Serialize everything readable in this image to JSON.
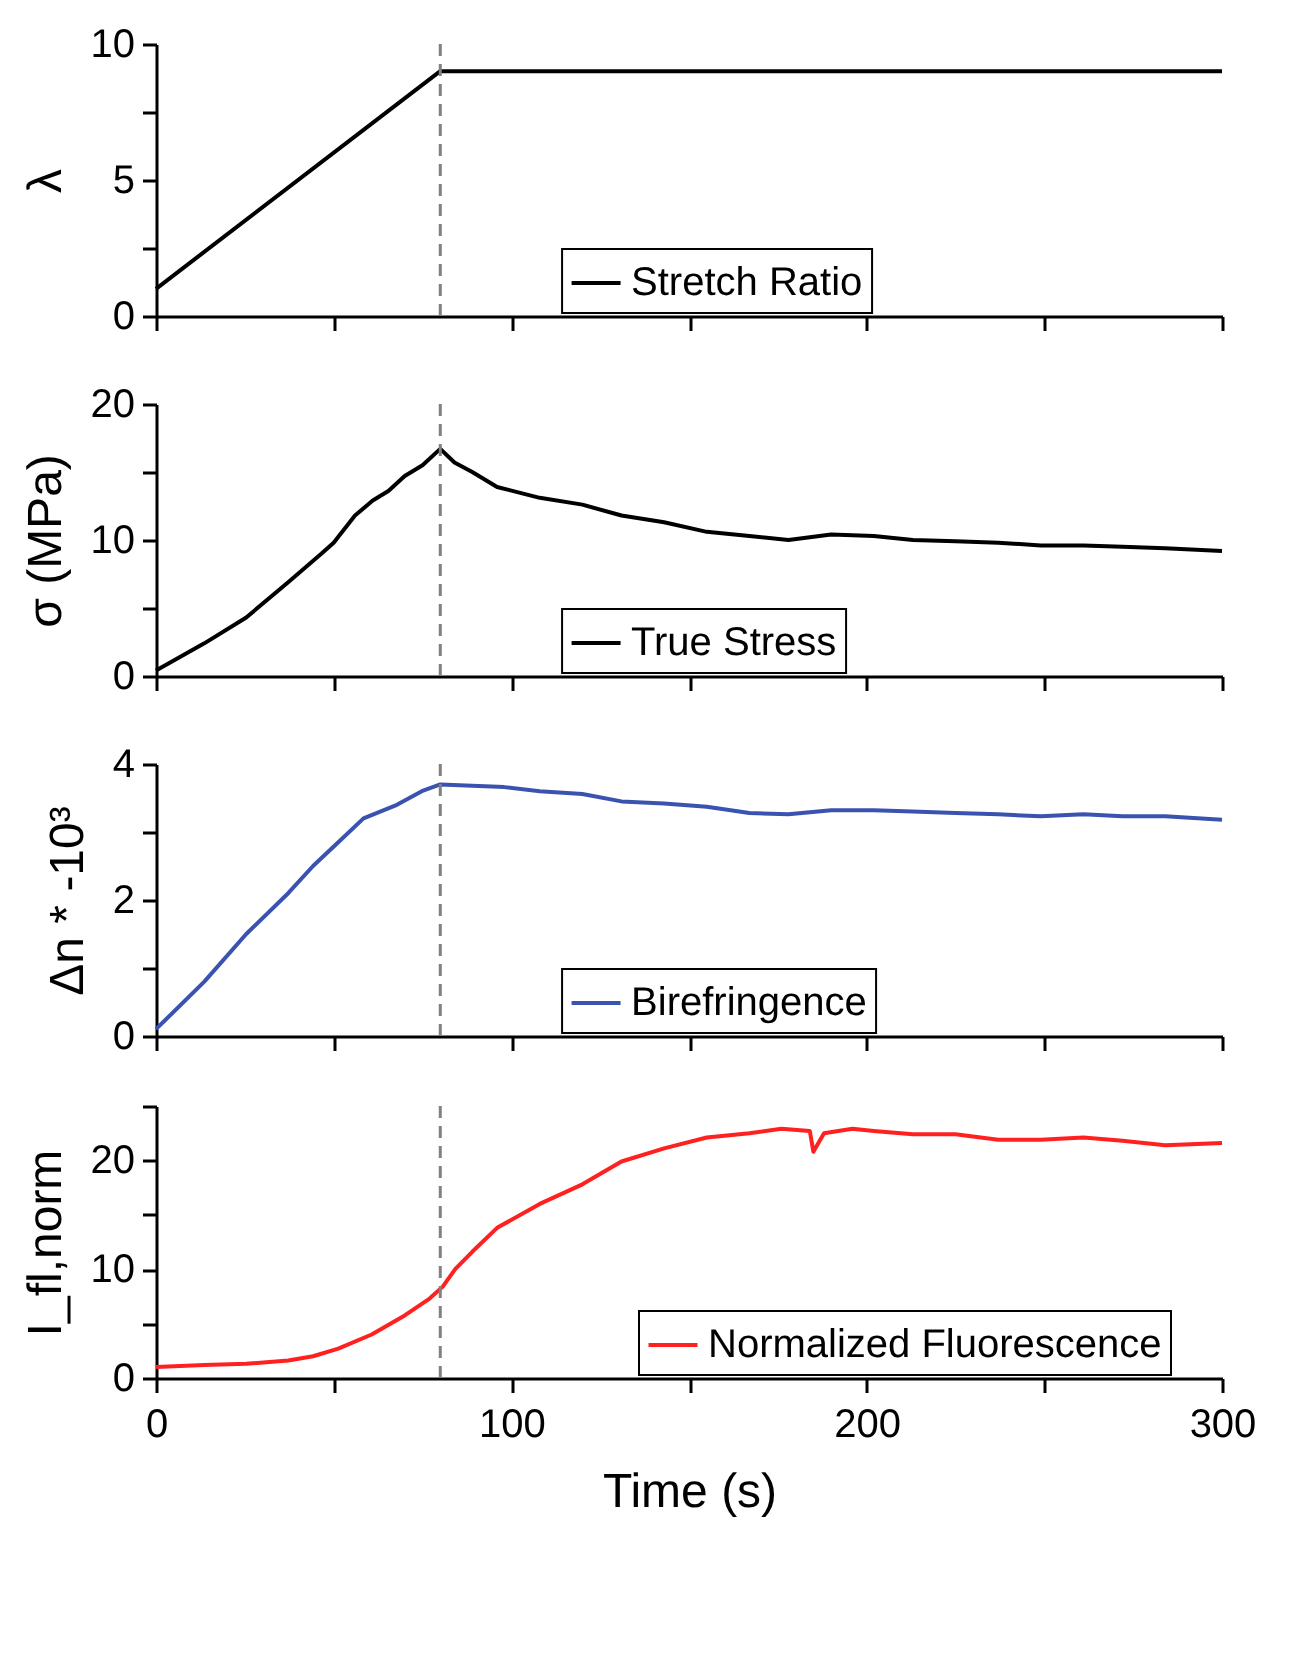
{
  "chart_data": [
    {
      "type": "line",
      "ylabel": "λ",
      "xlim": [
        0,
        300
      ],
      "xticks": [
        0,
        {
          "value": 50,
          "label": null
        },
        100,
        {
          "value": 150,
          "label": null
        },
        200,
        {
          "value": 250,
          "label": null
        },
        300
      ],
      "ylim": [
        0,
        10
      ],
      "yticks": [
        0,
        {
          "value": 2.5,
          "label": null
        },
        5,
        {
          "value": 7.5,
          "label": null
        },
        10
      ],
      "tick_labels": "y",
      "legend": "bottom",
      "grid": false,
      "series": [
        {
          "name": "Stretch Ratio",
          "color": "#000000",
          "x": [
            0,
            80,
            300
          ],
          "values": [
            1,
            9,
            9
          ]
        }
      ],
      "ref_lines": [
        {
          "axis": "x",
          "value": 80,
          "label": null,
          "color": "#808080",
          "line_style": "dashed"
        }
      ]
    },
    {
      "type": "line",
      "ylabel": "σ (MPa)",
      "xlim": [
        0,
        300
      ],
      "xticks": [
        0,
        {
          "value": 50,
          "label": null
        },
        100,
        {
          "value": 150,
          "label": null
        },
        200,
        {
          "value": 250,
          "label": null
        },
        300
      ],
      "ylim": [
        0,
        20
      ],
      "yticks": [
        0,
        {
          "value": 5,
          "label": null
        },
        10,
        {
          "value": 15,
          "label": null
        },
        20
      ],
      "tick_labels": "y",
      "legend": "bottom",
      "grid": false,
      "series": [
        {
          "name": "True Stress",
          "color": "#000000",
          "x": [
            0,
            13.6,
            25.4,
            37.2,
            46.6,
            50,
            56,
            61,
            65.4,
            70,
            75,
            80,
            84,
            89,
            96,
            108,
            120,
            131,
            143,
            155,
            167,
            178,
            190,
            202,
            213,
            225,
            237,
            249,
            261,
            272,
            284,
            300
          ],
          "values": [
            0.4,
            2.4,
            4.3,
            6.9,
            9.0,
            9.8,
            11.8,
            12.9,
            13.6,
            14.7,
            15.5,
            16.7,
            15.7,
            15,
            13.9,
            13.1,
            12.6,
            11.8,
            11.3,
            10.6,
            10.3,
            10,
            10.4,
            10.3,
            10,
            9.9,
            9.8,
            9.6,
            9.6,
            9.5,
            9.4,
            9.2
          ]
        }
      ],
      "ref_lines": [
        {
          "axis": "x",
          "value": 80,
          "label": null,
          "color": "#808080",
          "line_style": "dashed"
        }
      ]
    },
    {
      "type": "line",
      "ylabel": "Δn * -10³",
      "xlim": [
        0,
        300
      ],
      "xticks": [
        0,
        {
          "value": 50,
          "label": null
        },
        100,
        {
          "value": 150,
          "label": null
        },
        200,
        {
          "value": 250,
          "label": null
        },
        300
      ],
      "ylim": [
        0,
        4
      ],
      "yticks": [
        0,
        {
          "value": 1,
          "label": null
        },
        2,
        {
          "value": 3,
          "label": null
        },
        4
      ],
      "tick_labels": "y",
      "legend": "bottom",
      "grid": false,
      "series": [
        {
          "name": "Birefringence",
          "color": "#3a52b0",
          "x": [
            0,
            13.6,
            25.4,
            37.2,
            44.2,
            51.3,
            58.4,
            67.8,
            74.8,
            80,
            89,
            98,
            108,
            120,
            131,
            143,
            155,
            167,
            178,
            190,
            202,
            213,
            225,
            237,
            249,
            261,
            272,
            284,
            300
          ],
          "values": [
            0.1,
            0.8,
            1.5,
            2.1,
            2.5,
            2.85,
            3.2,
            3.4,
            3.6,
            3.7,
            3.68,
            3.66,
            3.6,
            3.56,
            3.45,
            3.42,
            3.37,
            3.28,
            3.26,
            3.32,
            3.32,
            3.3,
            3.28,
            3.26,
            3.23,
            3.26,
            3.23,
            3.23,
            3.18
          ]
        }
      ],
      "ref_lines": [
        {
          "axis": "x",
          "value": 80,
          "label": null,
          "color": "#808080",
          "line_style": "dashed"
        }
      ]
    },
    {
      "type": "line",
      "ylabel": "I_fl,norm",
      "xlabel": "Time (s)",
      "xlim": [
        0,
        300
      ],
      "xticks": [
        0,
        {
          "value": 50,
          "label": null
        },
        100,
        {
          "value": 150,
          "label": null
        },
        200,
        {
          "value": 250,
          "label": null
        },
        300
      ],
      "ylim": [
        0,
        25
      ],
      "yticks": [
        0,
        {
          "value": 5,
          "label": null
        },
        10,
        {
          "value": 15,
          "label": null
        },
        20,
        {
          "value": 25,
          "label": null
        }
      ],
      "legend": "bottom right",
      "grid": false,
      "series": [
        {
          "name": "Normalized Fluorescence",
          "color": "#ff2020",
          "x": [
            0,
            13.6,
            25.4,
            37.2,
            44.2,
            51.3,
            60.7,
            70,
            77,
            80.7,
            84.2,
            89,
            96,
            108,
            120,
            131,
            143,
            155,
            167,
            176,
            184,
            185,
            188,
            196,
            202,
            213,
            225,
            237,
            249,
            261,
            272,
            284,
            300
          ],
          "values": [
            1,
            1.2,
            1.3,
            1.6,
            2.0,
            2.7,
            4.0,
            5.75,
            7.3,
            8.4,
            10,
            11.6,
            13.8,
            16,
            17.8,
            19.9,
            21.1,
            22.1,
            22.5,
            22.9,
            22.7,
            20.8,
            22.5,
            22.9,
            22.7,
            22.4,
            22.4,
            21.9,
            21.9,
            22.1,
            21.8,
            21.4,
            21.6
          ]
        }
      ],
      "ref_lines": [
        {
          "axis": "x",
          "value": 80,
          "label": null,
          "color": "#808080",
          "line_style": "dashed"
        }
      ]
    }
  ]
}
